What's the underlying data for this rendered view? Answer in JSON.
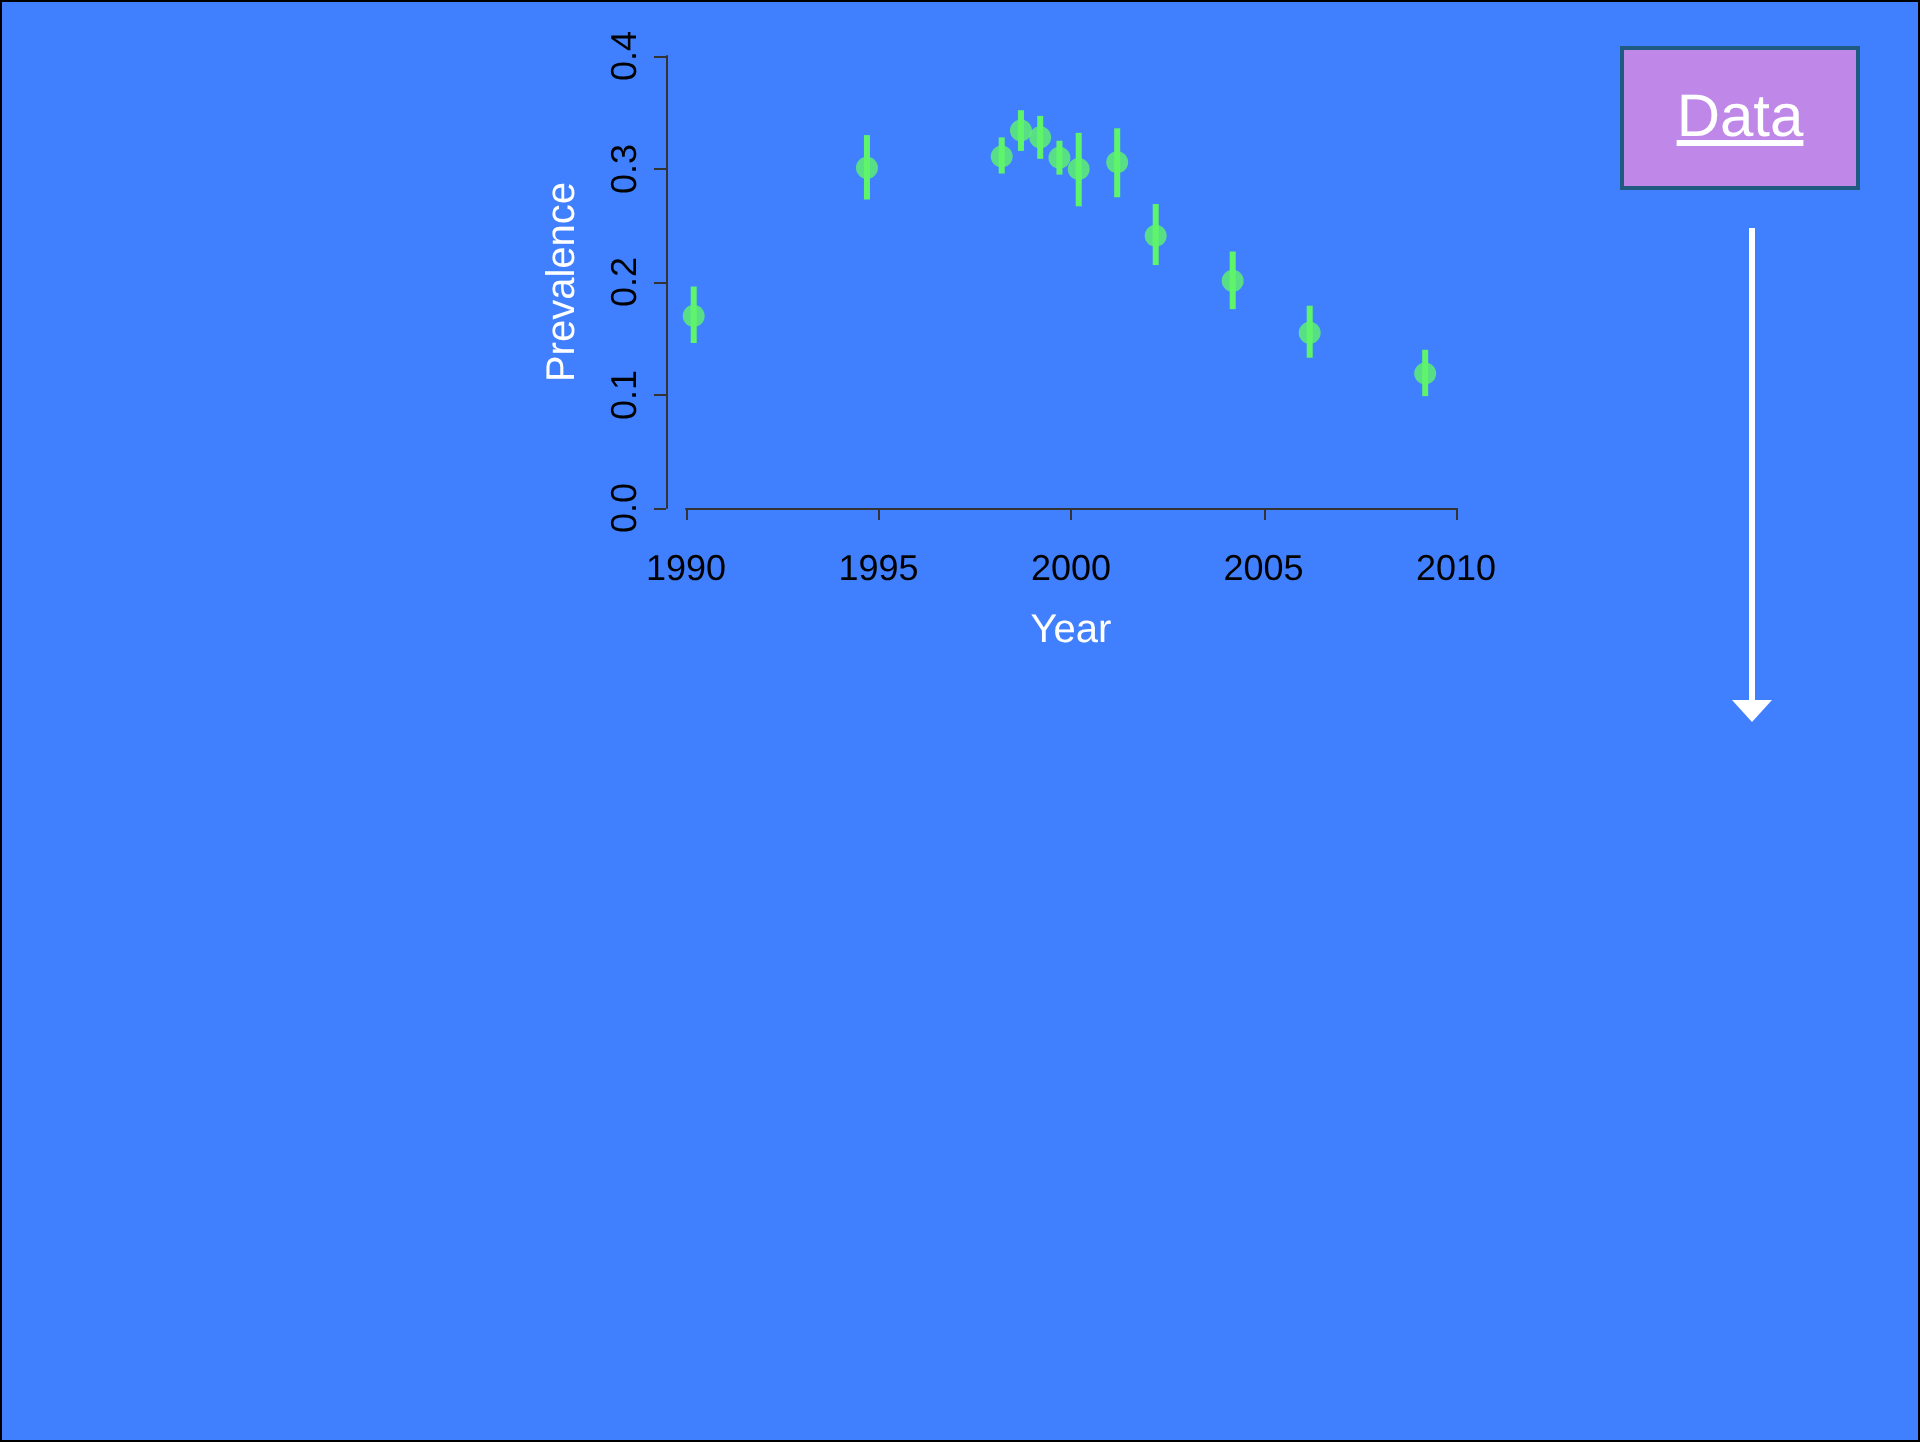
{
  "chart_data": {
    "type": "scatter",
    "xlabel": "Year",
    "ylabel": "Prevalence",
    "annotations": [
      "Data"
    ],
    "x": [
      1990.2,
      1994.7,
      1998.2,
      1998.7,
      1999.2,
      1999.7,
      2000.2,
      2001.2,
      2002.2,
      2004.2,
      2006.2,
      2009.2
    ],
    "series": [
      {
        "color": "#5ff56a",
        "values": [
          0.17,
          0.301,
          0.311,
          0.334,
          0.328,
          0.31,
          0.3,
          0.306,
          0.241,
          0.201,
          0.155,
          0.119
        ],
        "errors": [
          [
            0.146,
            0.196
          ],
          [
            0.273,
            0.33
          ],
          [
            0.296,
            0.328
          ],
          [
            0.316,
            0.352
          ],
          [
            0.309,
            0.347
          ],
          [
            0.295,
            0.325
          ],
          [
            0.267,
            0.332
          ],
          [
            0.275,
            0.336
          ],
          [
            0.215,
            0.269
          ],
          [
            0.176,
            0.227
          ],
          [
            0.133,
            0.179
          ],
          [
            0.099,
            0.14
          ]
        ]
      }
    ],
    "xlim": [
      1990,
      2010
    ],
    "xticks": [
      1990,
      1995,
      2000,
      2005,
      2010
    ],
    "ylim": [
      0,
      0.4
    ],
    "yticks": [
      {
        "value": 0,
        "label": "0.0"
      },
      {
        "value": 0.1,
        "label": "0.1"
      },
      {
        "value": 0.2,
        "label": "0.2"
      },
      {
        "value": 0.3,
        "label": "0.3"
      },
      {
        "value": 0.4,
        "label": "0.4"
      }
    ],
    "marker": "circle"
  }
}
